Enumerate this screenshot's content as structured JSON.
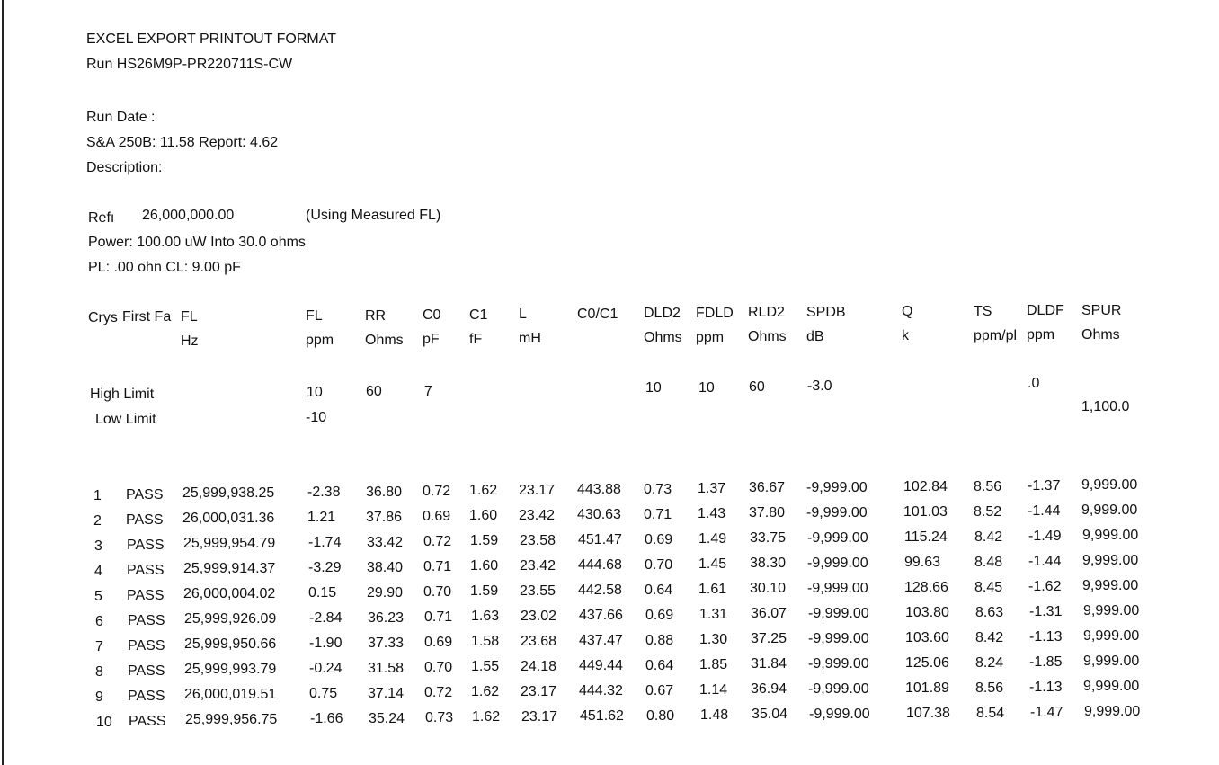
{
  "header": {
    "title": "EXCEL EXPORT PRINTOUT FORMAT",
    "run": "Run HS26M9P-PR220711S-CW",
    "run_date": "Run Date :",
    "versions": "S&A 250B: 11.58  Report: 4.62",
    "description": "Description:"
  },
  "settings": {
    "ref_label": "Refı",
    "ref_value": "26,000,000.00",
    "ref_note": "(Using Measured FL)",
    "power": "Power:  100.00  uW Into 30.0 ohms",
    "pl_cl": "PL:  .00 ohn CL:  9.00 pF"
  },
  "columns": [
    {
      "name": "Crys",
      "unit": ""
    },
    {
      "name": "First Fa",
      "unit": ""
    },
    {
      "name": "FL",
      "unit": "Hz"
    },
    {
      "name": "FL",
      "unit": "ppm"
    },
    {
      "name": "RR",
      "unit": "Ohms"
    },
    {
      "name": "C0",
      "unit": "pF"
    },
    {
      "name": "C1",
      "unit": "fF"
    },
    {
      "name": "L",
      "unit": "mH"
    },
    {
      "name": "C0/C1",
      "unit": ""
    },
    {
      "name": "DLD2",
      "unit": "Ohms"
    },
    {
      "name": "FDLD",
      "unit": "ppm"
    },
    {
      "name": "RLD2",
      "unit": "Ohms"
    },
    {
      "name": "SPDB",
      "unit": "dB"
    },
    {
      "name": "Q",
      "unit": "k"
    },
    {
      "name": "TS",
      "unit": "ppm/pl"
    },
    {
      "name": "DLDF",
      "unit": "ppm"
    },
    {
      "name": "SPUR",
      "unit": "Ohms"
    }
  ],
  "limits": {
    "high_label": "High Limit",
    "low_label": "Low Limit",
    "high": {
      "fl_ppm": "10",
      "rr": "60",
      "c0": "7",
      "dld2": "10",
      "fdld": "10",
      "rld2": "60",
      "spdb": "-3.0",
      "dldf": ".0"
    },
    "low": {
      "fl_ppm": "-10",
      "spur": "1,100.0"
    }
  },
  "rows": [
    [
      "1",
      "PASS",
      "25,999,938.25",
      "-2.38",
      "36.80",
      "0.72",
      "1.62",
      "23.17",
      "443.88",
      "0.73",
      "1.37",
      "36.67",
      "-9,999.00",
      "102.84",
      "8.56",
      "-1.37",
      "9,999.00"
    ],
    [
      "2",
      "PASS",
      "26,000,031.36",
      "1.21",
      "37.86",
      "0.69",
      "1.60",
      "23.42",
      "430.63",
      "0.71",
      "1.43",
      "37.80",
      "-9,999.00",
      "101.03",
      "8.52",
      "-1.44",
      "9,999.00"
    ],
    [
      "3",
      "PASS",
      "25,999,954.79",
      "-1.74",
      "33.42",
      "0.72",
      "1.59",
      "23.58",
      "451.47",
      "0.69",
      "1.49",
      "33.75",
      "-9,999.00",
      "115.24",
      "8.42",
      "-1.49",
      "9,999.00"
    ],
    [
      "4",
      "PASS",
      "25,999,914.37",
      "-3.29",
      "38.40",
      "0.71",
      "1.60",
      "23.42",
      "444.68",
      "0.70",
      "1.45",
      "38.30",
      "-9,999.00",
      "99.63",
      "8.48",
      "-1.44",
      "9,999.00"
    ],
    [
      "5",
      "PASS",
      "26,000,004.02",
      "0.15",
      "29.90",
      "0.70",
      "1.59",
      "23.55",
      "442.58",
      "0.64",
      "1.61",
      "30.10",
      "-9,999.00",
      "128.66",
      "8.45",
      "-1.62",
      "9,999.00"
    ],
    [
      "6",
      "PASS",
      "25,999,926.09",
      "-2.84",
      "36.23",
      "0.71",
      "1.63",
      "23.02",
      "437.66",
      "0.69",
      "1.31",
      "36.07",
      "-9,999.00",
      "103.80",
      "8.63",
      "-1.31",
      "9,999.00"
    ],
    [
      "7",
      "PASS",
      "25,999,950.66",
      "-1.90",
      "37.33",
      "0.69",
      "1.58",
      "23.68",
      "437.47",
      "0.88",
      "1.30",
      "37.25",
      "-9,999.00",
      "103.60",
      "8.42",
      "-1.13",
      "9,999.00"
    ],
    [
      "8",
      "PASS",
      "25,999,993.79",
      "-0.24",
      "31.58",
      "0.70",
      "1.55",
      "24.18",
      "449.44",
      "0.64",
      "1.85",
      "31.84",
      "-9,999.00",
      "125.06",
      "8.24",
      "-1.85",
      "9,999.00"
    ],
    [
      "9",
      "PASS",
      "26,000,019.51",
      "0.75",
      "37.14",
      "0.72",
      "1.62",
      "23.17",
      "444.32",
      "0.67",
      "1.14",
      "36.94",
      "-9,999.00",
      "101.89",
      "8.56",
      "-1.13",
      "9,999.00"
    ],
    [
      "10",
      "PASS",
      "25,999,956.75",
      "-1.66",
      "35.24",
      "0.73",
      "1.62",
      "23.17",
      "451.62",
      "0.80",
      "1.48",
      "35.04",
      "-9,999.00",
      "107.38",
      "8.54",
      "-1.47",
      "9,999.00"
    ]
  ]
}
